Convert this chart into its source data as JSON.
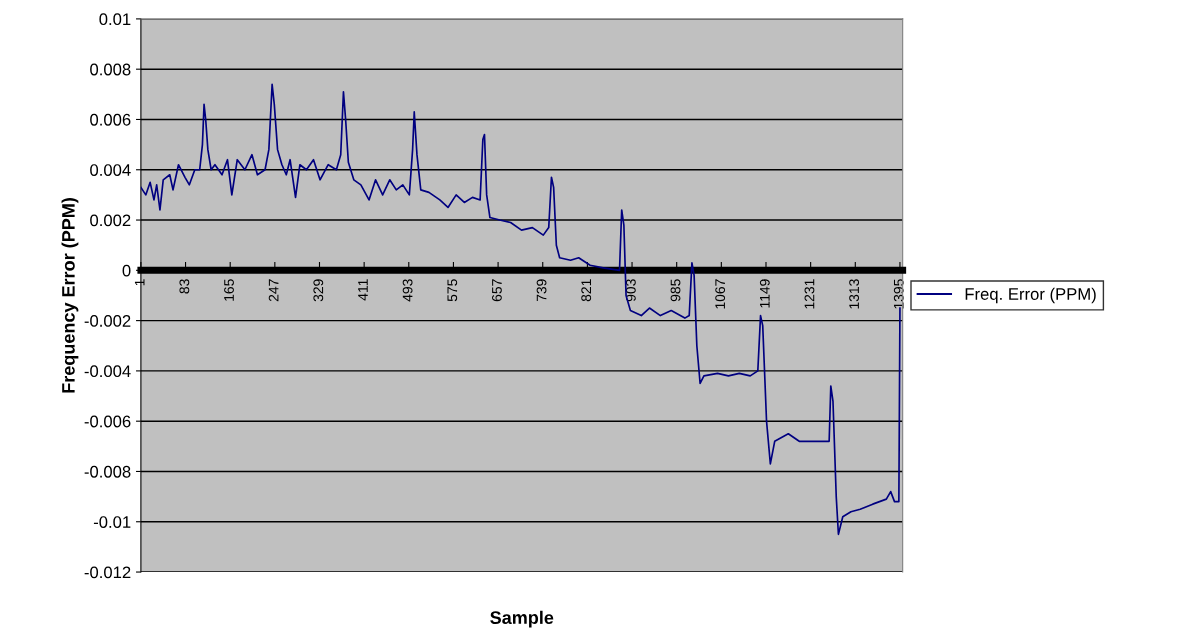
{
  "chart_data": {
    "type": "line",
    "xlabel": "Sample",
    "ylabel": "Frequency Error (PPM)",
    "xlim": [
      1,
      1400
    ],
    "xticks": [
      1,
      83,
      165,
      247,
      329,
      411,
      493,
      575,
      657,
      739,
      821,
      903,
      985,
      1067,
      1149,
      1231,
      1313,
      1395
    ],
    "ylim": [
      -0.012,
      0.01
    ],
    "yticks": [
      -0.012,
      -0.01,
      -0.008,
      -0.006,
      -0.004,
      -0.002,
      0,
      0.002,
      0.004,
      0.006,
      0.008,
      0.01
    ],
    "grid": "y",
    "legend": "right",
    "marker": "none",
    "line_style": "solid",
    "series": [
      {
        "name": "Freq. Error (PPM)",
        "color": "#000080",
        "x": [
          1,
          10,
          18,
          25,
          30,
          36,
          42,
          54,
          60,
          70,
          82,
          90,
          100,
          109,
          114,
          117,
          120,
          124,
          130,
          137,
          150,
          160,
          168,
          178,
          192,
          205,
          215,
          229,
          236,
          242,
          246,
          252,
          260,
          268,
          275,
          285,
          293,
          305,
          318,
          330,
          345,
          360,
          368,
          373,
          377,
          382,
          392,
          405,
          420,
          432,
          445,
          458,
          470,
          482,
          494,
          500,
          503,
          508,
          515,
          530,
          550,
          565,
          580,
          595,
          610,
          624,
          629,
          632,
          636,
          642,
          660,
          680,
          700,
          720,
          740,
          750,
          755,
          759,
          764,
          770,
          790,
          805,
          826,
          850,
          880,
          884,
          888,
          892,
          900,
          920,
          935,
          955,
          975,
          1000,
          1008,
          1013,
          1017,
          1022,
          1028,
          1035,
          1060,
          1080,
          1100,
          1120,
          1134,
          1139,
          1143,
          1150,
          1157,
          1165,
          1190,
          1210,
          1240,
          1265,
          1268,
          1272,
          1278,
          1282,
          1290,
          1305,
          1322,
          1345,
          1370,
          1378,
          1385,
          1393,
          1395
        ],
        "values": [
          0.0033,
          0.003,
          0.0035,
          0.0028,
          0.0034,
          0.0024,
          0.0036,
          0.0038,
          0.0032,
          0.0042,
          0.0037,
          0.0034,
          0.004,
          0.004,
          0.005,
          0.0066,
          0.006,
          0.0048,
          0.004,
          0.0042,
          0.0038,
          0.0044,
          0.003,
          0.0044,
          0.004,
          0.0046,
          0.0038,
          0.004,
          0.0048,
          0.0074,
          0.0066,
          0.0048,
          0.0042,
          0.0038,
          0.0044,
          0.0029,
          0.0042,
          0.004,
          0.0044,
          0.0036,
          0.0042,
          0.004,
          0.0046,
          0.0071,
          0.006,
          0.0043,
          0.0036,
          0.0034,
          0.0028,
          0.0036,
          0.003,
          0.0036,
          0.0032,
          0.0034,
          0.003,
          0.0048,
          0.0063,
          0.0046,
          0.0032,
          0.0031,
          0.0028,
          0.0025,
          0.003,
          0.0027,
          0.0029,
          0.0028,
          0.0052,
          0.0054,
          0.003,
          0.0021,
          0.002,
          0.0019,
          0.0016,
          0.0017,
          0.0014,
          0.0017,
          0.0037,
          0.0033,
          0.001,
          0.0005,
          0.0004,
          0.0005,
          0.0002,
          0.0001,
          0.0,
          0.0024,
          0.0018,
          -0.001,
          -0.0016,
          -0.0018,
          -0.0015,
          -0.0018,
          -0.0016,
          -0.0019,
          -0.0018,
          0.0003,
          -0.0002,
          -0.003,
          -0.0045,
          -0.0042,
          -0.0041,
          -0.0042,
          -0.0041,
          -0.0042,
          -0.004,
          -0.0018,
          -0.0022,
          -0.006,
          -0.0077,
          -0.0068,
          -0.0065,
          -0.0068,
          -0.0068,
          -0.0068,
          -0.0046,
          -0.0052,
          -0.009,
          -0.0105,
          -0.0098,
          -0.0096,
          -0.0095,
          -0.0093,
          -0.0091,
          -0.0088,
          -0.0092,
          -0.0092,
          -0.0015
        ]
      }
    ]
  }
}
